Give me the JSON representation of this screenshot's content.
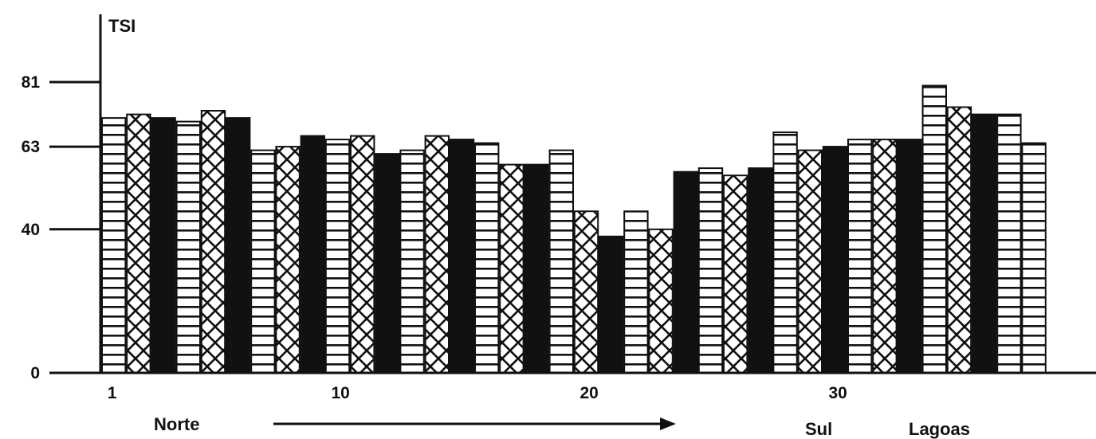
{
  "chart_data": {
    "type": "bar",
    "ylabel": "TSI",
    "yticks": [
      0,
      40,
      63,
      81
    ],
    "ylim": [
      0,
      92
    ],
    "x": [
      1,
      2,
      3,
      4,
      5,
      6,
      7,
      8,
      9,
      10,
      11,
      12,
      13,
      14,
      15,
      16,
      17,
      18,
      19,
      20,
      21,
      22,
      23,
      24,
      25,
      26,
      27,
      28,
      29,
      30,
      31,
      32,
      33,
      34,
      35,
      36,
      37,
      38,
      39,
      40
    ],
    "x_tick_labels": [
      "1",
      "10",
      "20",
      "30"
    ],
    "x_tick_positions": [
      1,
      10,
      20,
      30
    ],
    "values": [
      71,
      72,
      71,
      70,
      73,
      71,
      62,
      63,
      66,
      65,
      66,
      61,
      62,
      66,
      65,
      64,
      58,
      58,
      62,
      45,
      38,
      45,
      40,
      56,
      57,
      55,
      57,
      67,
      62,
      63,
      65,
      65,
      65,
      80,
      74,
      72,
      72,
      64,
      0,
      0
    ],
    "patterns": [
      "hbar",
      "cross",
      "solid",
      "hbar",
      "cross",
      "solid",
      "hbar",
      "cross",
      "solid",
      "hbar",
      "cross",
      "solid",
      "hbar",
      "cross",
      "solid",
      "hbar",
      "cross",
      "solid",
      "hbar",
      "cross",
      "solid",
      "hbar",
      "cross",
      "solid",
      "hbar",
      "cross",
      "solid",
      "hbar",
      "cross",
      "solid",
      "hbar",
      "cross",
      "solid",
      "hbar",
      "cross",
      "solid",
      "hbar",
      "hbar",
      "none",
      "none"
    ],
    "annotations": {
      "norte": "Norte",
      "sul": "Sul",
      "lagoas": "Lagoas"
    },
    "colors": {
      "ink": "#111111",
      "paper": "#ffffff"
    },
    "grid": false,
    "legend": "none"
  }
}
